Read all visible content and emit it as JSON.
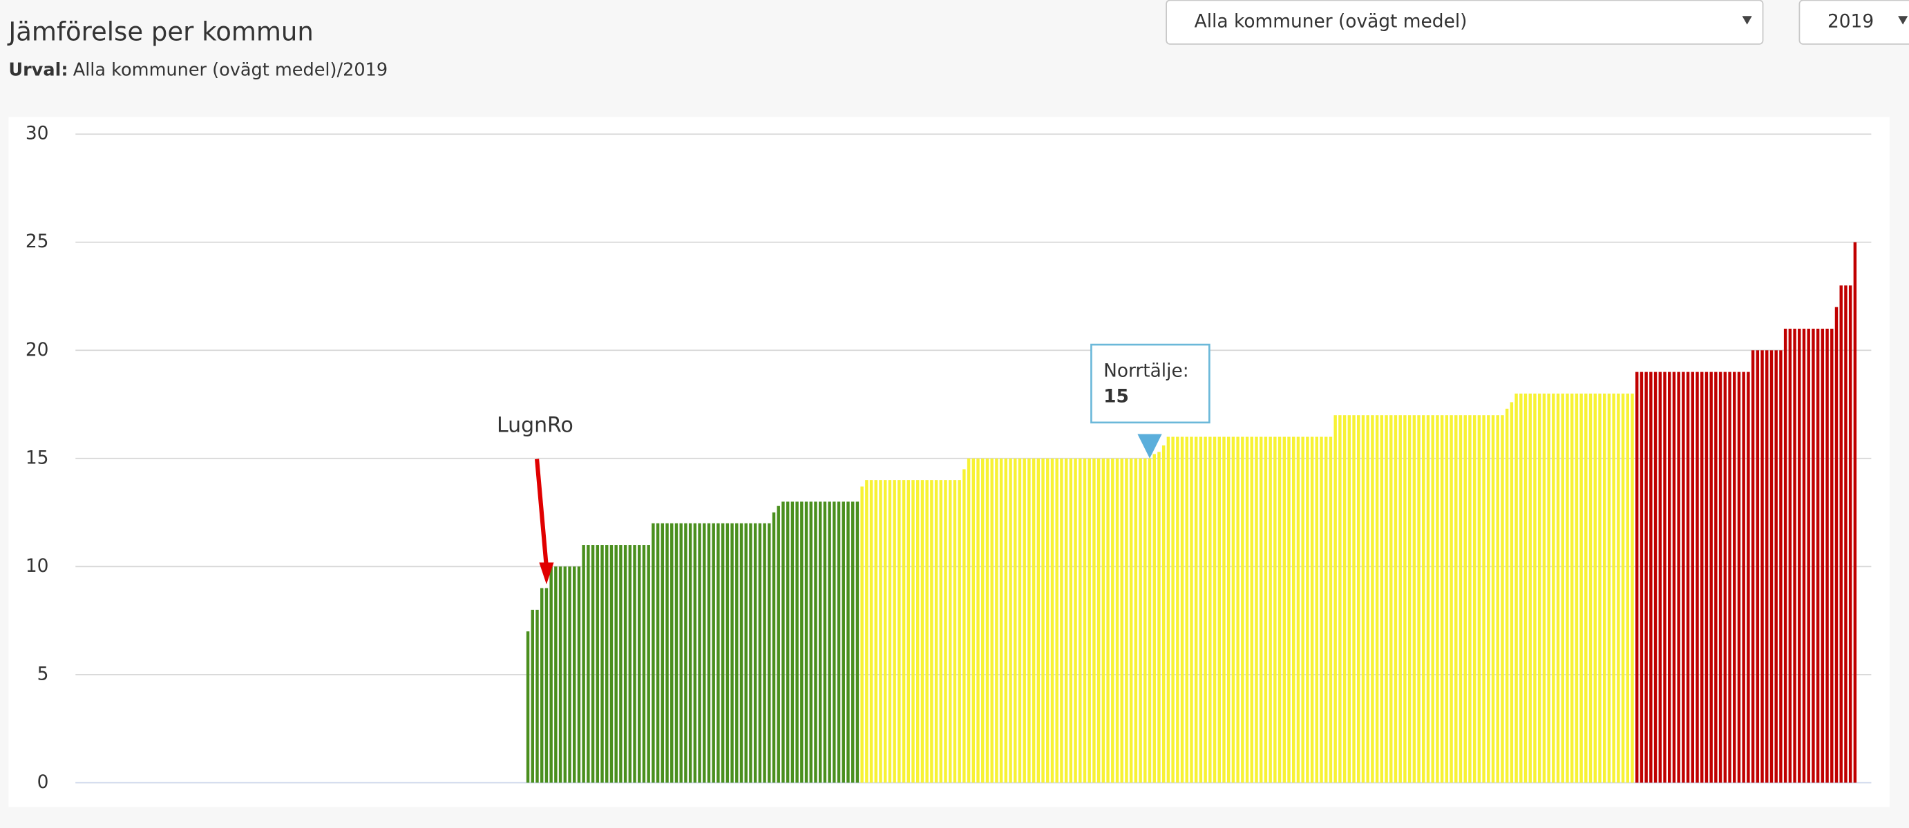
{
  "header": {
    "title": "Jämförelse per kommun",
    "selection_label": "Urval:",
    "selection_value": "Alla kommuner (ovägt medel)/2019",
    "dropdown_group": "Alla kommuner (ovägt medel)",
    "dropdown_year": "2019"
  },
  "chart_data": {
    "type": "bar",
    "ylim": [
      0,
      30
    ],
    "yticks": [
      0,
      5,
      10,
      15,
      20,
      25,
      30
    ],
    "grid": true,
    "annotation": "LugnRo",
    "tooltip": {
      "label": "Norrtälje:",
      "value": 15
    },
    "series": [
      {
        "color": "#4a8f1e",
        "values": [
          null,
          null,
          null,
          null,
          null,
          null,
          null,
          null,
          null,
          null,
          null,
          null,
          null,
          null,
          null,
          null,
          null,
          null,
          null,
          null,
          null,
          null,
          null,
          null,
          null,
          null,
          null,
          null,
          null,
          null,
          null,
          null,
          null,
          null,
          null,
          null,
          null,
          null,
          null,
          null,
          null,
          null,
          null,
          null,
          null,
          null,
          null,
          null,
          null,
          null,
          null,
          null,
          null,
          null,
          null,
          null,
          null,
          null,
          null,
          null,
          null,
          null,
          null,
          null,
          null,
          null,
          null,
          null,
          null,
          null,
          null,
          null,
          null,
          null,
          null,
          null,
          null,
          null,
          null,
          null,
          null,
          null,
          null,
          null,
          null,
          null,
          null,
          null,
          null,
          null,
          null,
          null,
          null,
          null,
          null,
          null,
          null,
          7,
          8,
          8,
          9,
          9,
          10,
          10,
          10,
          10,
          10,
          10,
          10,
          11,
          11,
          11,
          11,
          11,
          11,
          11,
          11,
          11,
          11,
          11,
          11,
          11,
          11,
          11,
          12,
          12,
          12,
          12,
          12,
          12,
          12,
          12,
          12,
          12,
          12,
          12,
          12,
          12,
          12,
          12,
          12,
          12,
          12,
          12,
          12,
          12,
          12,
          12,
          12,
          12,
          12.5,
          12.8,
          13,
          13,
          13,
          13,
          13,
          13,
          13,
          13,
          13,
          13,
          13,
          13,
          13,
          13,
          13,
          13,
          13,
          null,
          null,
          null,
          null,
          null,
          null,
          null,
          null,
          null,
          null,
          null,
          null,
          null,
          null,
          null,
          null,
          null,
          null,
          null,
          null,
          null,
          null,
          null,
          null,
          null,
          null,
          null,
          null,
          null,
          null,
          null,
          null,
          null,
          null,
          null,
          null,
          null,
          null,
          null,
          null,
          null,
          null,
          null,
          null,
          null,
          null,
          null,
          null,
          null,
          null,
          null,
          null,
          null,
          null,
          null,
          null,
          null,
          null,
          null,
          null,
          null,
          null,
          null,
          null,
          null,
          null,
          null,
          null,
          null,
          null,
          null,
          null,
          null,
          null,
          null,
          null,
          null,
          null,
          null,
          null,
          null,
          null,
          null,
          null,
          null,
          null,
          null,
          null,
          null,
          null,
          null,
          null,
          null,
          null,
          null,
          null,
          null,
          null,
          null,
          null,
          null,
          null,
          null,
          null,
          null,
          null,
          null,
          null,
          null,
          null,
          null,
          null,
          null,
          null,
          null,
          null,
          null,
          null,
          null,
          null,
          null,
          null,
          null,
          null,
          null,
          null,
          null,
          null,
          null,
          null,
          null,
          null,
          null,
          null,
          null,
          null,
          null,
          null,
          null,
          null,
          null,
          null,
          null,
          null,
          null,
          null,
          null,
          null,
          null,
          null,
          null,
          null,
          null,
          null,
          null,
          null,
          null,
          null,
          null,
          null,
          null,
          null,
          null,
          null,
          null,
          null,
          null,
          null,
          null,
          null,
          null,
          null,
          null,
          null,
          null,
          null,
          null,
          null,
          null,
          null,
          null,
          null,
          null,
          null,
          null,
          null,
          null,
          null,
          null,
          null,
          null,
          null,
          null,
          null,
          null,
          null,
          null,
          null,
          null,
          null,
          null,
          null,
          null,
          null,
          null,
          null,
          null,
          null,
          null,
          null,
          null,
          null,
          null,
          null,
          null,
          null,
          null,
          null
        ]
      },
      {
        "color": "#f7f234",
        "values": [
          null,
          null,
          null,
          null,
          null,
          null,
          null,
          null,
          null,
          null,
          null,
          null,
          null,
          null,
          null,
          null,
          null,
          null,
          null,
          null,
          null,
          null,
          null,
          null,
          null,
          null,
          null,
          null,
          null,
          null,
          null,
          null,
          null,
          null,
          null,
          null,
          null,
          null,
          null,
          null,
          null,
          null,
          null,
          null,
          null,
          null,
          null,
          null,
          null,
          null,
          null,
          null,
          null,
          null,
          null,
          null,
          null,
          null,
          null,
          null,
          null,
          null,
          null,
          null,
          null,
          null,
          null,
          null,
          null,
          null,
          null,
          null,
          null,
          null,
          null,
          null,
          null,
          null,
          null,
          null,
          null,
          null,
          null,
          null,
          null,
          null,
          null,
          null,
          null,
          null,
          null,
          null,
          null,
          null,
          null,
          null,
          null,
          null,
          null,
          null,
          null,
          null,
          null,
          null,
          null,
          null,
          null,
          null,
          null,
          null,
          null,
          null,
          null,
          null,
          null,
          null,
          null,
          null,
          null,
          null,
          null,
          null,
          null,
          null,
          null,
          null,
          null,
          null,
          null,
          null,
          null,
          null,
          null,
          null,
          null,
          null,
          null,
          null,
          null,
          null,
          null,
          null,
          null,
          null,
          null,
          null,
          null,
          null,
          null,
          null,
          null,
          null,
          null,
          null,
          null,
          null,
          null,
          null,
          null,
          null,
          null,
          null,
          null,
          null,
          null,
          null,
          null,
          null,
          null,
          13.7,
          14,
          14,
          14,
          14,
          14,
          14,
          14,
          14,
          14,
          14,
          14,
          14,
          14,
          14,
          14,
          14,
          14,
          14,
          14,
          14,
          14,
          14.5,
          15,
          15,
          15,
          15,
          15,
          15,
          15,
          15,
          15,
          15,
          15,
          15,
          15,
          15,
          15,
          15,
          15,
          15,
          15,
          15,
          15,
          15,
          15,
          15,
          15,
          15,
          15,
          15,
          15,
          15,
          15,
          15,
          15,
          15,
          15,
          15,
          15,
          15,
          15,
          15,
          15.2,
          15.3,
          15.6,
          16,
          16,
          16,
          16,
          16,
          16,
          16,
          16,
          16,
          16,
          16,
          16,
          16,
          16,
          16,
          16,
          16,
          16,
          16,
          16,
          16,
          16,
          16,
          16,
          16,
          16,
          16,
          16,
          16,
          16,
          16,
          16,
          16,
          16,
          16,
          16,
          17,
          17,
          17,
          17,
          17,
          17,
          17,
          17,
          17,
          17,
          17,
          17,
          17,
          17,
          17,
          17,
          17,
          17,
          17,
          17,
          17,
          17,
          17,
          17,
          17,
          17,
          17,
          17,
          17,
          17,
          17,
          17,
          17,
          17,
          17,
          17,
          17,
          17.3,
          17.6,
          18,
          18,
          18,
          18,
          18,
          18,
          18,
          18,
          18,
          18,
          18,
          18,
          18,
          18,
          18,
          18,
          18,
          18,
          18,
          18,
          18,
          18,
          18,
          18,
          18,
          18,
          null,
          null,
          null,
          null,
          null,
          null,
          null,
          null,
          null,
          null,
          null,
          null,
          null,
          null,
          null,
          null,
          null,
          null,
          null,
          null,
          null,
          null,
          null,
          null,
          null,
          null,
          null,
          null,
          null,
          null,
          null,
          null,
          null,
          null,
          null,
          null,
          null,
          null,
          null,
          null,
          null,
          null,
          null,
          null,
          null,
          null,
          null,
          null,
          null,
          null,
          null
        ]
      },
      {
        "color": "#c00000",
        "values": [
          null,
          null,
          null,
          null,
          null,
          null,
          null,
          null,
          null,
          null,
          null,
          null,
          null,
          null,
          null,
          null,
          null,
          null,
          null,
          null,
          null,
          null,
          null,
          null,
          null,
          null,
          null,
          null,
          null,
          null,
          null,
          null,
          null,
          null,
          null,
          null,
          null,
          null,
          null,
          null,
          null,
          null,
          null,
          null,
          null,
          null,
          null,
          null,
          null,
          null,
          null,
          null,
          null,
          null,
          null,
          null,
          null,
          null,
          null,
          null,
          null,
          null,
          null,
          null,
          null,
          null,
          null,
          null,
          null,
          null,
          null,
          null,
          null,
          null,
          null,
          null,
          null,
          null,
          null,
          null,
          null,
          null,
          null,
          null,
          null,
          null,
          null,
          null,
          null,
          null,
          null,
          null,
          null,
          null,
          null,
          null,
          null,
          null,
          null,
          null,
          null,
          null,
          null,
          null,
          null,
          null,
          null,
          null,
          null,
          null,
          null,
          null,
          null,
          null,
          null,
          null,
          null,
          null,
          null,
          null,
          null,
          null,
          null,
          null,
          null,
          null,
          null,
          null,
          null,
          null,
          null,
          null,
          null,
          null,
          null,
          null,
          null,
          null,
          null,
          null,
          null,
          null,
          null,
          null,
          null,
          null,
          null,
          null,
          null,
          null,
          null,
          null,
          null,
          null,
          null,
          null,
          null,
          null,
          null,
          null,
          null,
          null,
          null,
          null,
          null,
          null,
          null,
          null,
          null,
          null,
          null,
          null,
          null,
          null,
          null,
          null,
          null,
          null,
          null,
          null,
          null,
          null,
          null,
          null,
          null,
          null,
          null,
          null,
          null,
          null,
          null,
          null,
          null,
          null,
          null,
          null,
          null,
          null,
          null,
          null,
          null,
          null,
          null,
          null,
          null,
          null,
          null,
          null,
          null,
          null,
          null,
          null,
          null,
          null,
          null,
          null,
          null,
          null,
          null,
          null,
          null,
          null,
          null,
          null,
          null,
          null,
          null,
          null,
          null,
          null,
          null,
          null,
          null,
          null,
          null,
          null,
          null,
          null,
          null,
          null,
          null,
          null,
          null,
          null,
          null,
          null,
          null,
          null,
          null,
          null,
          null,
          null,
          null,
          null,
          null,
          null,
          null,
          null,
          null,
          null,
          null,
          null,
          null,
          null,
          null,
          null,
          null,
          null,
          null,
          null,
          null,
          null,
          null,
          null,
          null,
          null,
          null,
          null,
          null,
          null,
          null,
          null,
          null,
          null,
          null,
          null,
          null,
          null,
          null,
          null,
          null,
          null,
          null,
          null,
          null,
          null,
          null,
          null,
          null,
          null,
          null,
          null,
          null,
          null,
          null,
          null,
          null,
          null,
          null,
          null,
          null,
          null,
          null,
          null,
          null,
          null,
          null,
          null,
          null,
          null,
          null,
          null,
          null,
          null,
          null,
          null,
          null,
          null,
          null,
          null,
          null,
          null,
          null,
          null,
          null,
          null,
          19,
          19,
          19,
          19,
          19,
          19,
          19,
          19,
          19,
          19,
          19,
          19,
          19,
          19,
          19,
          19,
          19,
          19,
          19,
          19,
          19,
          19,
          19,
          19,
          19,
          20,
          20,
          20,
          20,
          20,
          20,
          20,
          21,
          21,
          21,
          21,
          21,
          21,
          21,
          21,
          21,
          21,
          21,
          22,
          23,
          23,
          23,
          25,
          null,
          null,
          null
        ]
      }
    ]
  }
}
